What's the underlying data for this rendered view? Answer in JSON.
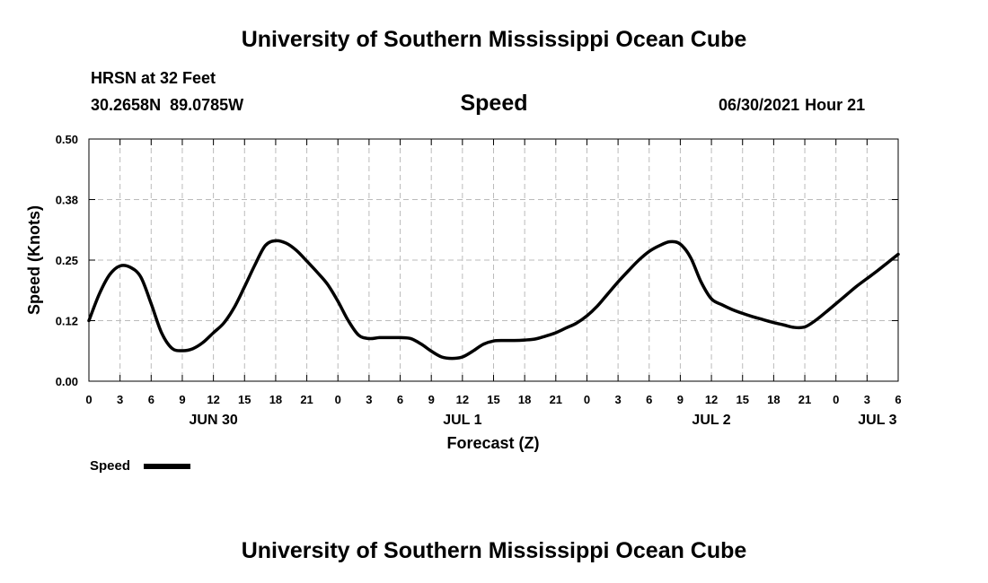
{
  "header": {
    "title": "University of Southern Mississippi Ocean Cube",
    "station": "HRSN at 32 Feet",
    "latitude": "30.2658N",
    "longitude": "89.0785W",
    "chart_title": "Speed",
    "date": "06/30/2021",
    "hour": "Hour 21"
  },
  "footer": {
    "title": "University of Southern Mississippi Ocean Cube"
  },
  "colors": {
    "line": "#000000",
    "grid": "#bbbbbb",
    "background": "#ffffff"
  },
  "chart_data": {
    "type": "line",
    "title": "Speed",
    "xlabel": "Forecast (Z)",
    "ylabel": "Speed (Knots)",
    "xlim": [
      0,
      78
    ],
    "ylim": [
      0,
      0.5
    ],
    "y_ticks": [
      0.0,
      0.125,
      0.25,
      0.375,
      0.5
    ],
    "y_tick_labels": [
      "0.00",
      "0.12",
      "0.25",
      "0.38",
      "0.50"
    ],
    "x_ticks": [
      0,
      3,
      6,
      9,
      12,
      15,
      18,
      21,
      24,
      27,
      30,
      33,
      36,
      39,
      42,
      45,
      48,
      51,
      54,
      57,
      60,
      63,
      66,
      69,
      72,
      75,
      78
    ],
    "x_tick_labels": [
      "0",
      "3",
      "6",
      "9",
      "12",
      "15",
      "18",
      "21",
      "0",
      "3",
      "6",
      "9",
      "12",
      "15",
      "18",
      "21",
      "0",
      "3",
      "6",
      "9",
      "12",
      "15",
      "18",
      "21",
      "0",
      "3",
      "6"
    ],
    "day_labels": [
      {
        "x": 12,
        "label": "JUN 30"
      },
      {
        "x": 36,
        "label": "JUL 1"
      },
      {
        "x": 60,
        "label": "JUL 2"
      },
      {
        "x": 76,
        "label": "JUL 3"
      }
    ],
    "grid": true,
    "legend": {
      "position": "bottom-left",
      "entries": [
        "Speed"
      ]
    },
    "series": [
      {
        "name": "Speed",
        "x": [
          0,
          1,
          2,
          3,
          4,
          5,
          6,
          7,
          8,
          9,
          10,
          11,
          12,
          13,
          14,
          15,
          16,
          17,
          18,
          19,
          20,
          21,
          22,
          23,
          24,
          25,
          26,
          27,
          28,
          29,
          30,
          31,
          32,
          33,
          34,
          35,
          36,
          37,
          38,
          39,
          40,
          41,
          42,
          43,
          44,
          45,
          46,
          47,
          48,
          49,
          50,
          51,
          52,
          53,
          54,
          55,
          56,
          57,
          58,
          59,
          60,
          61,
          62,
          63,
          64,
          65,
          66,
          67,
          68,
          69,
          70,
          71,
          72,
          73,
          74,
          75,
          76,
          77,
          78
        ],
        "values": [
          0.125,
          0.18,
          0.22,
          0.238,
          0.235,
          0.215,
          0.16,
          0.1,
          0.068,
          0.063,
          0.067,
          0.08,
          0.1,
          0.12,
          0.152,
          0.195,
          0.24,
          0.28,
          0.29,
          0.285,
          0.27,
          0.248,
          0.225,
          0.2,
          0.165,
          0.125,
          0.095,
          0.088,
          0.09,
          0.09,
          0.09,
          0.088,
          0.077,
          0.062,
          0.05,
          0.047,
          0.05,
          0.062,
          0.076,
          0.083,
          0.084,
          0.084,
          0.085,
          0.087,
          0.093,
          0.1,
          0.11,
          0.12,
          0.135,
          0.155,
          0.18,
          0.205,
          0.228,
          0.25,
          0.268,
          0.28,
          0.288,
          0.283,
          0.255,
          0.205,
          0.17,
          0.158,
          0.148,
          0.14,
          0.133,
          0.127,
          0.121,
          0.116,
          0.111,
          0.112,
          0.125,
          0.142,
          0.16,
          0.178,
          0.196,
          0.212,
          0.228,
          0.245,
          0.262
        ]
      }
    ]
  }
}
